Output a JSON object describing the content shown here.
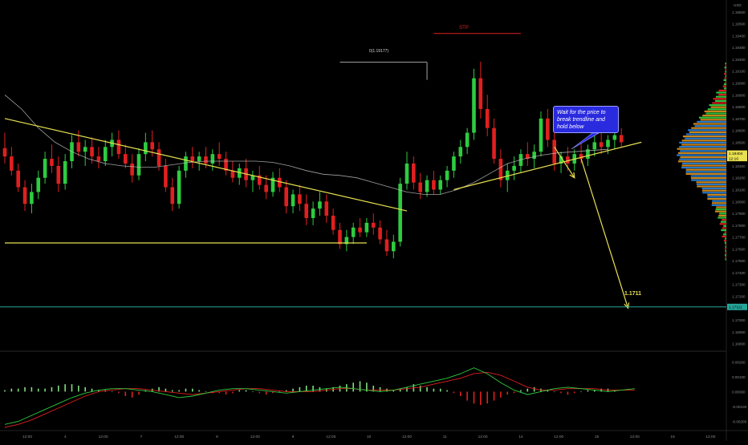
{
  "chart_data": [
    {
      "type": "candlestick",
      "instrument_currency": "USD",
      "price_scale_labels": [
        "1.19600",
        "1.19500",
        "1.19400",
        "1.19300",
        "1.19200",
        "1.19100",
        "1.19000",
        "1.18900",
        "1.18800",
        "1.18700",
        "1.18600",
        "1.18500",
        "1.18400",
        "1.18300",
        "1.18200",
        "1.18100",
        "1.18000",
        "1.17900",
        "1.17800",
        "1.17700",
        "1.17600",
        "1.17500",
        "1.17400",
        "1.17300",
        "1.17200",
        "1.17100",
        "1.17000",
        "1.16900",
        "1.16800"
      ],
      "time_labels": [
        "12:00",
        "4",
        "12:00",
        "7",
        "12:00",
        "8",
        "12:00",
        "9",
        "12:00",
        "10",
        "12:00",
        "11",
        "12:00",
        "14",
        "12:00",
        "15",
        "12:00",
        "16",
        "12:00"
      ],
      "ylim": [
        1.1675,
        1.1968
      ],
      "candles": [
        {
          "o": 1.1845,
          "h": 1.1858,
          "l": 1.1832,
          "c": 1.1838
        },
        {
          "o": 1.1838,
          "h": 1.1846,
          "l": 1.1822,
          "c": 1.1826
        },
        {
          "o": 1.1826,
          "h": 1.1832,
          "l": 1.1808,
          "c": 1.1812
        },
        {
          "o": 1.1812,
          "h": 1.1818,
          "l": 1.1792,
          "c": 1.1798
        },
        {
          "o": 1.1798,
          "h": 1.1815,
          "l": 1.179,
          "c": 1.1808
        },
        {
          "o": 1.1808,
          "h": 1.1826,
          "l": 1.1802,
          "c": 1.182
        },
        {
          "o": 1.182,
          "h": 1.1842,
          "l": 1.1815,
          "c": 1.1836
        },
        {
          "o": 1.1836,
          "h": 1.1848,
          "l": 1.1824,
          "c": 1.183
        },
        {
          "o": 1.183,
          "h": 1.1838,
          "l": 1.1808,
          "c": 1.1815
        },
        {
          "o": 1.1815,
          "h": 1.184,
          "l": 1.181,
          "c": 1.1834
        },
        {
          "o": 1.1834,
          "h": 1.1856,
          "l": 1.1828,
          "c": 1.185
        },
        {
          "o": 1.185,
          "h": 1.186,
          "l": 1.1838,
          "c": 1.1842
        },
        {
          "o": 1.1842,
          "h": 1.1852,
          "l": 1.183,
          "c": 1.1846
        },
        {
          "o": 1.1846,
          "h": 1.1854,
          "l": 1.1832,
          "c": 1.1838
        },
        {
          "o": 1.1838,
          "h": 1.1846,
          "l": 1.1828,
          "c": 1.1834
        },
        {
          "o": 1.1834,
          "h": 1.1852,
          "l": 1.183,
          "c": 1.1846
        },
        {
          "o": 1.1846,
          "h": 1.1858,
          "l": 1.1838,
          "c": 1.1852
        },
        {
          "o": 1.1852,
          "h": 1.186,
          "l": 1.1836,
          "c": 1.184
        },
        {
          "o": 1.184,
          "h": 1.1848,
          "l": 1.1828,
          "c": 1.1832
        },
        {
          "o": 1.1832,
          "h": 1.184,
          "l": 1.1816,
          "c": 1.1822
        },
        {
          "o": 1.1822,
          "h": 1.1845,
          "l": 1.1818,
          "c": 1.184
        },
        {
          "o": 1.184,
          "h": 1.1858,
          "l": 1.1834,
          "c": 1.185
        },
        {
          "o": 1.185,
          "h": 1.186,
          "l": 1.1838,
          "c": 1.1844
        },
        {
          "o": 1.1844,
          "h": 1.185,
          "l": 1.1826,
          "c": 1.183
        },
        {
          "o": 1.183,
          "h": 1.1836,
          "l": 1.1808,
          "c": 1.1812
        },
        {
          "o": 1.1812,
          "h": 1.182,
          "l": 1.1792,
          "c": 1.1798
        },
        {
          "o": 1.1798,
          "h": 1.183,
          "l": 1.1794,
          "c": 1.1826
        },
        {
          "o": 1.1826,
          "h": 1.1842,
          "l": 1.182,
          "c": 1.1838
        },
        {
          "o": 1.1838,
          "h": 1.1846,
          "l": 1.1828,
          "c": 1.1834
        },
        {
          "o": 1.1834,
          "h": 1.1842,
          "l": 1.1826,
          "c": 1.1838
        },
        {
          "o": 1.1838,
          "h": 1.1846,
          "l": 1.1828,
          "c": 1.1832
        },
        {
          "o": 1.1832,
          "h": 1.1844,
          "l": 1.1826,
          "c": 1.184
        },
        {
          "o": 1.184,
          "h": 1.185,
          "l": 1.183,
          "c": 1.1836
        },
        {
          "o": 1.1836,
          "h": 1.1842,
          "l": 1.1822,
          "c": 1.1826
        },
        {
          "o": 1.1826,
          "h": 1.1834,
          "l": 1.1816,
          "c": 1.182
        },
        {
          "o": 1.182,
          "h": 1.1832,
          "l": 1.1814,
          "c": 1.1828
        },
        {
          "o": 1.1828,
          "h": 1.1836,
          "l": 1.1812,
          "c": 1.1818
        },
        {
          "o": 1.1818,
          "h": 1.1826,
          "l": 1.1808,
          "c": 1.1822
        },
        {
          "o": 1.1822,
          "h": 1.183,
          "l": 1.181,
          "c": 1.1814
        },
        {
          "o": 1.1814,
          "h": 1.1822,
          "l": 1.1802,
          "c": 1.1808
        },
        {
          "o": 1.1808,
          "h": 1.1825,
          "l": 1.1804,
          "c": 1.182
        },
        {
          "o": 1.182,
          "h": 1.1828,
          "l": 1.1808,
          "c": 1.1812
        },
        {
          "o": 1.1812,
          "h": 1.1818,
          "l": 1.179,
          "c": 1.1796
        },
        {
          "o": 1.1796,
          "h": 1.181,
          "l": 1.179,
          "c": 1.1806
        },
        {
          "o": 1.1806,
          "h": 1.1814,
          "l": 1.1792,
          "c": 1.1798
        },
        {
          "o": 1.1798,
          "h": 1.1806,
          "l": 1.178,
          "c": 1.1786
        },
        {
          "o": 1.1786,
          "h": 1.18,
          "l": 1.178,
          "c": 1.1794
        },
        {
          "o": 1.1794,
          "h": 1.1808,
          "l": 1.1788,
          "c": 1.18
        },
        {
          "o": 1.18,
          "h": 1.1806,
          "l": 1.1782,
          "c": 1.1788
        },
        {
          "o": 1.1788,
          "h": 1.1794,
          "l": 1.1772,
          "c": 1.1776
        },
        {
          "o": 1.1776,
          "h": 1.1782,
          "l": 1.176,
          "c": 1.1764
        },
        {
          "o": 1.1764,
          "h": 1.1776,
          "l": 1.1758,
          "c": 1.177
        },
        {
          "o": 1.177,
          "h": 1.1782,
          "l": 1.1764,
          "c": 1.1778
        },
        {
          "o": 1.1778,
          "h": 1.1786,
          "l": 1.177,
          "c": 1.1774
        },
        {
          "o": 1.1774,
          "h": 1.1786,
          "l": 1.177,
          "c": 1.1782
        },
        {
          "o": 1.1782,
          "h": 1.179,
          "l": 1.1772,
          "c": 1.1778
        },
        {
          "o": 1.1778,
          "h": 1.1784,
          "l": 1.1764,
          "c": 1.1768
        },
        {
          "o": 1.1768,
          "h": 1.1776,
          "l": 1.1754,
          "c": 1.1758
        },
        {
          "o": 1.1758,
          "h": 1.1772,
          "l": 1.1752,
          "c": 1.1766
        },
        {
          "o": 1.1766,
          "h": 1.182,
          "l": 1.1762,
          "c": 1.1815
        },
        {
          "o": 1.1815,
          "h": 1.1842,
          "l": 1.181,
          "c": 1.1832
        },
        {
          "o": 1.1832,
          "h": 1.1838,
          "l": 1.181,
          "c": 1.1816
        },
        {
          "o": 1.1816,
          "h": 1.1824,
          "l": 1.1802,
          "c": 1.1808
        },
        {
          "o": 1.1808,
          "h": 1.1822,
          "l": 1.1804,
          "c": 1.1818
        },
        {
          "o": 1.1818,
          "h": 1.1826,
          "l": 1.1806,
          "c": 1.181
        },
        {
          "o": 1.181,
          "h": 1.1822,
          "l": 1.1806,
          "c": 1.1818
        },
        {
          "o": 1.1818,
          "h": 1.183,
          "l": 1.1812,
          "c": 1.1826
        },
        {
          "o": 1.1826,
          "h": 1.1842,
          "l": 1.182,
          "c": 1.1838
        },
        {
          "o": 1.1838,
          "h": 1.1852,
          "l": 1.1832,
          "c": 1.1846
        },
        {
          "o": 1.1846,
          "h": 1.1862,
          "l": 1.184,
          "c": 1.1858
        },
        {
          "o": 1.1858,
          "h": 1.1912,
          "l": 1.1852,
          "c": 1.1904
        },
        {
          "o": 1.1904,
          "h": 1.1918,
          "l": 1.187,
          "c": 1.1878
        },
        {
          "o": 1.1878,
          "h": 1.189,
          "l": 1.1855,
          "c": 1.1862
        },
        {
          "o": 1.1862,
          "h": 1.187,
          "l": 1.1832,
          "c": 1.1836
        },
        {
          "o": 1.1836,
          "h": 1.1844,
          "l": 1.1812,
          "c": 1.1818
        },
        {
          "o": 1.1818,
          "h": 1.1832,
          "l": 1.1808,
          "c": 1.1826
        },
        {
          "o": 1.1826,
          "h": 1.1838,
          "l": 1.1818,
          "c": 1.183
        },
        {
          "o": 1.183,
          "h": 1.1844,
          "l": 1.1824,
          "c": 1.184
        },
        {
          "o": 1.184,
          "h": 1.185,
          "l": 1.183,
          "c": 1.1836
        },
        {
          "o": 1.1836,
          "h": 1.1848,
          "l": 1.1828,
          "c": 1.1842
        },
        {
          "o": 1.1842,
          "h": 1.1876,
          "l": 1.1838,
          "c": 1.187
        },
        {
          "o": 1.187,
          "h": 1.1878,
          "l": 1.1846,
          "c": 1.1852
        },
        {
          "o": 1.1852,
          "h": 1.186,
          "l": 1.1826,
          "c": 1.1832
        },
        {
          "o": 1.1832,
          "h": 1.1842,
          "l": 1.1824,
          "c": 1.1838
        },
        {
          "o": 1.1838,
          "h": 1.1846,
          "l": 1.1826,
          "c": 1.1832
        },
        {
          "o": 1.1832,
          "h": 1.1844,
          "l": 1.1826,
          "c": 1.184
        },
        {
          "o": 1.184,
          "h": 1.185,
          "l": 1.1832,
          "c": 1.1836
        },
        {
          "o": 1.1836,
          "h": 1.1848,
          "l": 1.183,
          "c": 1.1844
        },
        {
          "o": 1.1844,
          "h": 1.1856,
          "l": 1.1838,
          "c": 1.185
        },
        {
          "o": 1.185,
          "h": 1.1858,
          "l": 1.184,
          "c": 1.1846
        },
        {
          "o": 1.1846,
          "h": 1.1856,
          "l": 1.184,
          "c": 1.1852
        },
        {
          "o": 1.1852,
          "h": 1.1862,
          "l": 1.1844,
          "c": 1.1856
        },
        {
          "o": 1.1856,
          "h": 1.1862,
          "l": 1.1846,
          "c": 1.185
        }
      ],
      "moving_average": [
        1.189,
        1.1878,
        1.1862,
        1.185,
        1.1842,
        1.1836,
        1.1832,
        1.183,
        1.1829,
        1.1829,
        1.1831,
        1.1833,
        1.1834,
        1.1834,
        1.1834,
        1.1834,
        1.1833,
        1.183,
        1.1826,
        1.1823,
        1.1822,
        1.182,
        1.1816,
        1.1812,
        1.1808,
        1.1806,
        1.1806,
        1.181,
        1.1816,
        1.1824,
        1.1832,
        1.1836,
        1.1839,
        1.1841,
        1.1842,
        1.1843,
        1.1844
      ],
      "ma_start_index": 0,
      "ma_step": 2.5,
      "drawings": {
        "descending_trendline": {
          "from": {
            "bar": 0,
            "price": 1.187
          },
          "to": {
            "bar": 60,
            "price": 1.1792
          }
        },
        "support_line": {
          "from": {
            "bar": 0,
            "price": 1.1765
          },
          "to": {
            "bar": 54,
            "price": 1.1765
          }
        },
        "ascending_trendline": {
          "from": {
            "bar": 67,
            "price": 1.181
          },
          "to": {
            "bar": 95,
            "price": 1.185
          }
        },
        "projection_arrow_1": {
          "from": {
            "bar": 82,
            "price": 1.1846
          },
          "to": {
            "bar": 85,
            "price": 1.182
          }
        },
        "projection_arrow_2": {
          "from": {
            "bar": 86,
            "price": 1.1836
          },
          "to": {
            "bar": 93,
            "price": 1.171
          }
        },
        "stp_line": {
          "from": {
            "bar": 64,
            "price": 1.19418
          },
          "to": {
            "bar": 77,
            "price": 1.19418
          }
        },
        "high_marker": {
          "from": {
            "bar": 50,
            "price": 1.19175
          },
          "to": {
            "bar": 63,
            "price": 1.19175
          }
        }
      },
      "target_level": {
        "price": 1.1711,
        "label": "1.1711",
        "color": "#26a69a"
      },
      "target_scale_label": "1.17111",
      "current_price_labels": [
        {
          "price": 1.18404,
          "text": "1.18404"
        },
        {
          "price": 1.1838,
          "text": "12:16"
        }
      ],
      "annotations": {
        "stp_label": "STP",
        "high_label": "0(1.19177)",
        "note": "Wait for the price to break trendline and hold below",
        "target_text": "1.1711"
      },
      "colors": {
        "up": "#2ecc40",
        "down": "#e02020",
        "trendline": "#e8e050",
        "ma": "#c8c8c8",
        "note_bg": "#2a2adf",
        "stp": "#e02020"
      }
    },
    {
      "type": "macd",
      "scale_labels": [
        "0.00200",
        "0.00100",
        "0.00000",
        "-0.00100",
        "-0.00200"
      ],
      "ylim": [
        -0.0024,
        0.0025
      ],
      "histogram": [
        0.0001,
        0.0002,
        0.0002,
        0.0003,
        0.0003,
        0.0002,
        0.0002,
        0.0003,
        0.0004,
        0.0005,
        0.0005,
        0.0004,
        0.0003,
        0.0002,
        0.0001,
        0.0001,
        0.0,
        -0.0001,
        -0.0003,
        -0.0004,
        -0.0002,
        0.0001,
        0.0002,
        0.0003,
        0.0002,
        0.0001,
        0.0001,
        0.0002,
        0.0002,
        0.0001,
        0.0,
        -0.0001,
        -0.0001,
        -0.0002,
        -0.0001,
        0.0001,
        0.0001,
        0.0,
        -0.0001,
        -0.0002,
        -0.0001,
        0.0,
        0.0001,
        0.0002,
        0.0003,
        0.0004,
        0.0004,
        0.0003,
        0.0002,
        0.0003,
        0.0004,
        0.0005,
        0.0006,
        0.0007,
        0.0006,
        0.0004,
        0.0003,
        0.0002,
        0.0001,
        0.0002,
        0.0003,
        0.0005,
        0.0004,
        0.0003,
        0.0002,
        0.0002,
        0.0001,
        -0.0001,
        -0.0003,
        -0.0006,
        -0.0008,
        -0.0009,
        -0.0008,
        -0.0006,
        -0.0004,
        -0.0002,
        -0.0001,
        0.0001,
        0.0002,
        0.0003,
        0.0002,
        0.0001,
        0.0,
        -0.0001,
        -0.0002,
        -0.0001,
        0.0,
        0.0001,
        0.0001,
        0.0002,
        0.0002,
        0.0001
      ],
      "macd_line": [
        -0.0022,
        -0.002,
        -0.0016,
        -0.0012,
        -0.0008,
        -0.0004,
        -0.0001,
        0.0001,
        0.0002,
        0.0002,
        0.0001,
        0.0,
        -0.0002,
        -0.0004,
        -0.0003,
        -0.0001,
        0.0001,
        0.0002,
        0.0002,
        0.0001,
        0.0,
        -0.0001,
        0.0,
        0.0001,
        0.0002,
        0.0003,
        0.0002,
        0.0001,
        0.0,
        0.0001,
        0.0003,
        0.0005,
        0.0007,
        0.0009,
        0.0012,
        0.0016,
        0.0012,
        0.0006,
        0.0001,
        -0.0002,
        0.0,
        0.0002,
        0.0003,
        0.0002,
        0.0001,
        0.0,
        0.0001,
        0.0002
      ],
      "signal_line": [
        -0.0024,
        -0.0022,
        -0.0019,
        -0.0015,
        -0.0011,
        -0.0007,
        -0.0003,
        0.0,
        0.0001,
        0.0002,
        0.0002,
        0.0001,
        0.0,
        -0.0001,
        -0.0002,
        -0.0001,
        0.0,
        0.0001,
        0.0002,
        0.0002,
        0.0001,
        0.0,
        0.0,
        0.0,
        0.0001,
        0.0002,
        0.0002,
        0.0001,
        0.0001,
        0.0001,
        0.0002,
        0.0003,
        0.0005,
        0.0007,
        0.0009,
        0.0012,
        0.0013,
        0.0011,
        0.0007,
        0.0003,
        0.0001,
        0.0001,
        0.0002,
        0.0002,
        0.0002,
        0.0001,
        0.0001,
        0.0001
      ],
      "colors": {
        "macd": "#2ecc40",
        "signal": "#e02020",
        "hist_up": "#7fdc7f",
        "hist_down": "#e02020"
      }
    }
  ]
}
